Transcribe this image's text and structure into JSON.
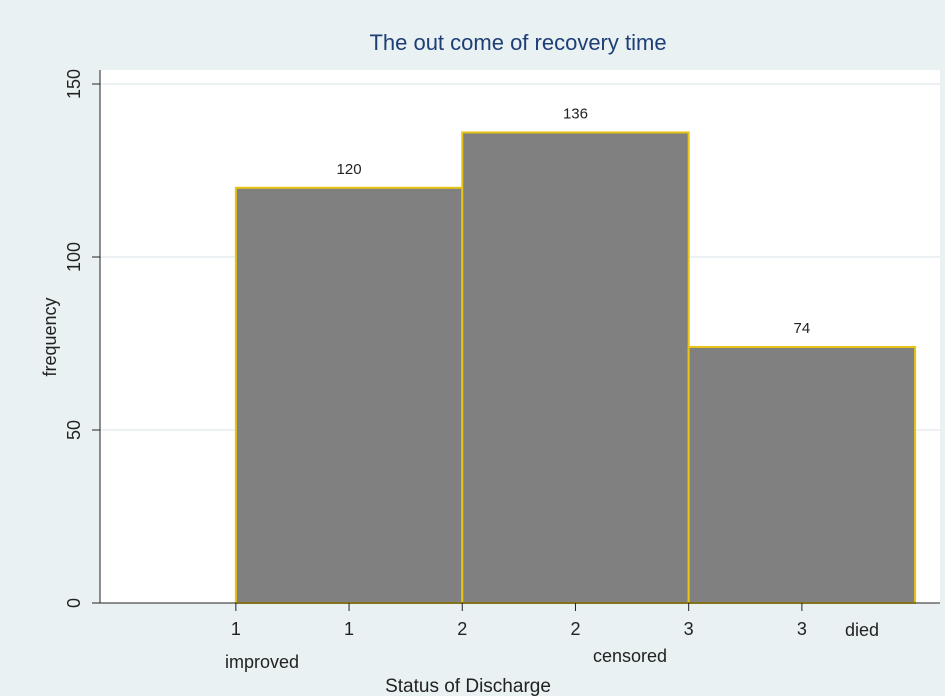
{
  "chart_data": {
    "type": "histogram",
    "title": "The out come of recovery time",
    "x_label": "Status of Discharge",
    "y_label": "frequency",
    "bins": [
      1,
      2,
      3,
      4
    ],
    "values": [
      120,
      136,
      74
    ],
    "color": "#808080",
    "edge_color": "#e8c414",
    "xlim": [
      0.4,
      4.11
    ],
    "ylim": [
      0,
      150
    ],
    "xticks": [
      {
        "value": 1,
        "label": "1"
      },
      {
        "value": 1.5,
        "label": "1"
      },
      {
        "value": 2,
        "label": "2"
      },
      {
        "value": 2.5,
        "label": "2"
      },
      {
        "value": 3,
        "label": "3"
      },
      {
        "value": 3.5,
        "label": "3"
      }
    ],
    "yticks": [
      0,
      50,
      100,
      150
    ],
    "grid": true,
    "annotations": [
      "improved",
      "censored",
      "died"
    ]
  }
}
